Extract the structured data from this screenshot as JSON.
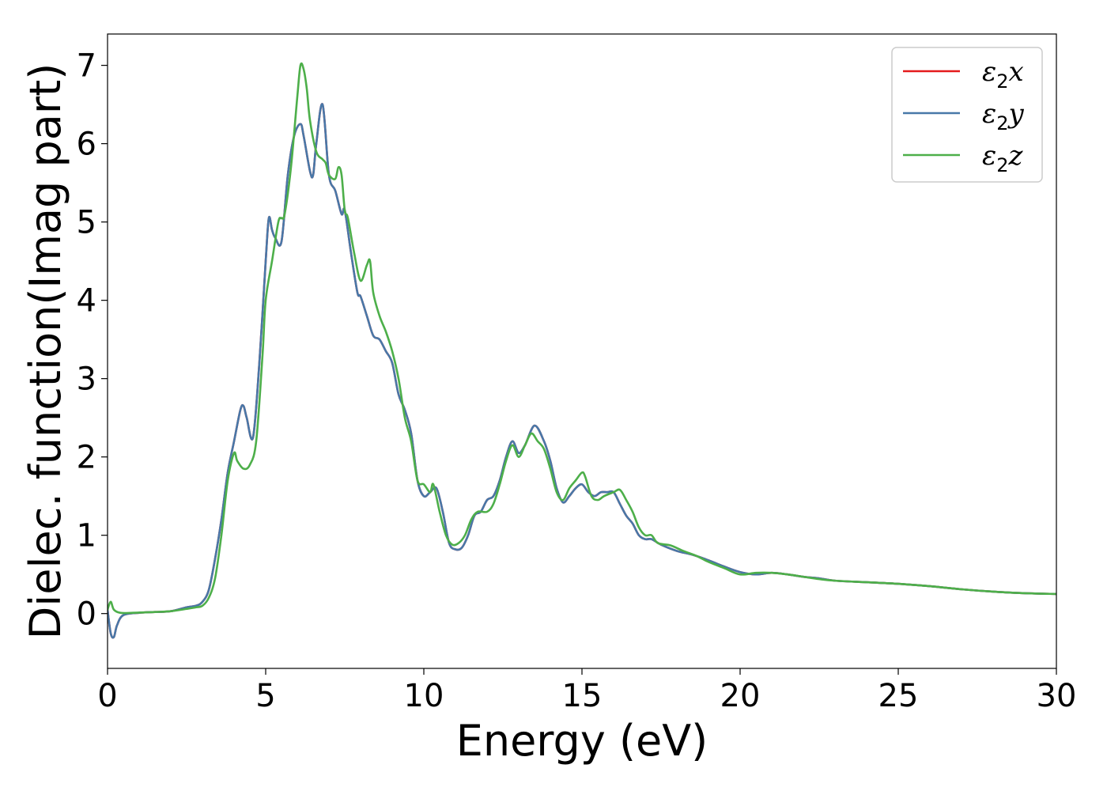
{
  "chart_data": {
    "type": "line",
    "title": "",
    "xlabel": "Energy (eV)",
    "ylabel": "Dielec. function(Imag part)",
    "xlim": [
      0,
      30
    ],
    "ylim": [
      -0.7,
      7.4
    ],
    "xticks": [
      0,
      5,
      10,
      15,
      20,
      25,
      30
    ],
    "yticks": [
      0,
      1,
      2,
      3,
      4,
      5,
      6,
      7
    ],
    "grid": false,
    "legend_position": "top-right",
    "series": [
      {
        "name": "ε2x",
        "legend_base": "ε",
        "legend_sub": "2",
        "legend_tail": "x",
        "color": "#e41a1c",
        "x": [
          0,
          0.1,
          0.2,
          0.3,
          0.5,
          1.0,
          1.5,
          2.0,
          2.5,
          2.8,
          3.0,
          3.2,
          3.4,
          3.6,
          3.8,
          4.0,
          4.2,
          4.3,
          4.4,
          4.6,
          4.8,
          5.0,
          5.1,
          5.2,
          5.3,
          5.5,
          5.7,
          5.9,
          6.1,
          6.2,
          6.4,
          6.5,
          6.6,
          6.8,
          7.0,
          7.2,
          7.4,
          7.5,
          7.7,
          7.9,
          8.0,
          8.2,
          8.4,
          8.6,
          8.8,
          9.0,
          9.2,
          9.4,
          9.6,
          9.8,
          10.0,
          10.2,
          10.4,
          10.6,
          10.8,
          11.0,
          11.2,
          11.4,
          11.6,
          11.8,
          12.0,
          12.2,
          12.4,
          12.6,
          12.8,
          13.0,
          13.2,
          13.5,
          13.8,
          14.0,
          14.2,
          14.4,
          14.6,
          14.8,
          15.0,
          15.2,
          15.4,
          15.6,
          15.8,
          16.0,
          16.2,
          16.4,
          16.6,
          16.8,
          17.0,
          17.2,
          17.5,
          18.0,
          18.5,
          19.0,
          19.5,
          20.0,
          20.5,
          21.0,
          21.5,
          22.0,
          22.5,
          23.0,
          24.0,
          25.0,
          26.0,
          27.0,
          28.0,
          29.0,
          30.0
        ],
        "y": [
          0.05,
          -0.25,
          -0.3,
          -0.15,
          -0.02,
          0.01,
          0.02,
          0.03,
          0.08,
          0.1,
          0.15,
          0.3,
          0.7,
          1.2,
          1.8,
          2.2,
          2.6,
          2.65,
          2.5,
          2.25,
          3.2,
          4.5,
          5.05,
          4.9,
          4.8,
          4.75,
          5.6,
          6.1,
          6.25,
          6.1,
          5.65,
          5.6,
          6.0,
          6.5,
          5.6,
          5.4,
          5.1,
          5.15,
          4.6,
          4.1,
          4.05,
          3.8,
          3.55,
          3.5,
          3.35,
          3.2,
          2.8,
          2.6,
          2.3,
          1.7,
          1.5,
          1.55,
          1.6,
          1.3,
          0.9,
          0.82,
          0.84,
          1.0,
          1.25,
          1.3,
          1.45,
          1.5,
          1.7,
          2.0,
          2.2,
          2.05,
          2.15,
          2.4,
          2.2,
          1.95,
          1.6,
          1.42,
          1.5,
          1.6,
          1.65,
          1.55,
          1.5,
          1.55,
          1.55,
          1.55,
          1.4,
          1.25,
          1.15,
          1.0,
          0.95,
          0.95,
          0.88,
          0.8,
          0.75,
          0.68,
          0.6,
          0.53,
          0.5,
          0.52,
          0.5,
          0.47,
          0.45,
          0.42,
          0.4,
          0.38,
          0.35,
          0.31,
          0.28,
          0.26,
          0.25
        ]
      },
      {
        "name": "ε2y",
        "legend_base": "ε",
        "legend_sub": "2",
        "legend_tail": "y",
        "color": "#4878a8",
        "x": [
          0,
          0.1,
          0.2,
          0.3,
          0.5,
          1.0,
          1.5,
          2.0,
          2.5,
          2.8,
          3.0,
          3.2,
          3.4,
          3.6,
          3.8,
          4.0,
          4.2,
          4.3,
          4.4,
          4.6,
          4.8,
          5.0,
          5.1,
          5.2,
          5.3,
          5.5,
          5.7,
          5.9,
          6.1,
          6.2,
          6.4,
          6.5,
          6.6,
          6.8,
          7.0,
          7.2,
          7.4,
          7.5,
          7.7,
          7.9,
          8.0,
          8.2,
          8.4,
          8.6,
          8.8,
          9.0,
          9.2,
          9.4,
          9.6,
          9.8,
          10.0,
          10.2,
          10.4,
          10.6,
          10.8,
          11.0,
          11.2,
          11.4,
          11.6,
          11.8,
          12.0,
          12.2,
          12.4,
          12.6,
          12.8,
          13.0,
          13.2,
          13.5,
          13.8,
          14.0,
          14.2,
          14.4,
          14.6,
          14.8,
          15.0,
          15.2,
          15.4,
          15.6,
          15.8,
          16.0,
          16.2,
          16.4,
          16.6,
          16.8,
          17.0,
          17.2,
          17.5,
          18.0,
          18.5,
          19.0,
          19.5,
          20.0,
          20.5,
          21.0,
          21.5,
          22.0,
          22.5,
          23.0,
          24.0,
          25.0,
          26.0,
          27.0,
          28.0,
          29.0,
          30.0
        ],
        "y": [
          0.05,
          -0.25,
          -0.3,
          -0.15,
          -0.02,
          0.01,
          0.02,
          0.03,
          0.08,
          0.1,
          0.15,
          0.3,
          0.7,
          1.2,
          1.8,
          2.2,
          2.6,
          2.65,
          2.5,
          2.25,
          3.2,
          4.5,
          5.05,
          4.9,
          4.8,
          4.75,
          5.6,
          6.1,
          6.25,
          6.1,
          5.65,
          5.6,
          6.0,
          6.5,
          5.6,
          5.4,
          5.1,
          5.15,
          4.6,
          4.1,
          4.05,
          3.8,
          3.55,
          3.5,
          3.35,
          3.2,
          2.8,
          2.6,
          2.3,
          1.7,
          1.5,
          1.55,
          1.6,
          1.3,
          0.9,
          0.82,
          0.84,
          1.0,
          1.25,
          1.3,
          1.45,
          1.5,
          1.7,
          2.0,
          2.2,
          2.05,
          2.15,
          2.4,
          2.2,
          1.95,
          1.6,
          1.42,
          1.5,
          1.6,
          1.65,
          1.55,
          1.5,
          1.55,
          1.55,
          1.55,
          1.4,
          1.25,
          1.15,
          1.0,
          0.95,
          0.95,
          0.88,
          0.8,
          0.75,
          0.68,
          0.6,
          0.53,
          0.5,
          0.52,
          0.5,
          0.47,
          0.45,
          0.42,
          0.4,
          0.38,
          0.35,
          0.31,
          0.28,
          0.26,
          0.25
        ]
      },
      {
        "name": "ε2z",
        "legend_base": "ε",
        "legend_sub": "2",
        "legend_tail": "z",
        "color": "#4daf4a",
        "x": [
          0,
          0.1,
          0.2,
          0.4,
          0.8,
          1.5,
          2.0,
          2.5,
          2.8,
          3.0,
          3.2,
          3.4,
          3.6,
          3.8,
          4.0,
          4.1,
          4.3,
          4.5,
          4.7,
          4.9,
          5.0,
          5.2,
          5.4,
          5.5,
          5.6,
          5.8,
          6.0,
          6.1,
          6.2,
          6.3,
          6.4,
          6.6,
          6.8,
          6.9,
          7.0,
          7.2,
          7.3,
          7.4,
          7.5,
          7.6,
          7.8,
          8.0,
          8.2,
          8.3,
          8.4,
          8.6,
          8.8,
          9.0,
          9.2,
          9.4,
          9.6,
          9.8,
          10.0,
          10.2,
          10.3,
          10.5,
          10.7,
          10.9,
          11.1,
          11.3,
          11.5,
          11.7,
          12.0,
          12.2,
          12.4,
          12.6,
          12.8,
          13.0,
          13.2,
          13.4,
          13.6,
          13.8,
          14.0,
          14.2,
          14.4,
          14.6,
          14.8,
          15.0,
          15.1,
          15.3,
          15.5,
          15.7,
          16.0,
          16.2,
          16.4,
          16.6,
          16.8,
          17.0,
          17.2,
          17.4,
          17.8,
          18.2,
          18.6,
          19.0,
          19.5,
          20.0,
          20.5,
          21.0,
          21.5,
          22.0,
          22.5,
          23.0,
          24.0,
          25.0,
          26.0,
          27.0,
          28.0,
          29.0,
          30.0
        ],
        "y": [
          0.05,
          0.15,
          0.05,
          0.01,
          0.01,
          0.02,
          0.03,
          0.06,
          0.08,
          0.1,
          0.2,
          0.45,
          1.0,
          1.7,
          2.05,
          1.95,
          1.85,
          1.9,
          2.2,
          3.3,
          4.0,
          4.5,
          5.0,
          5.05,
          5.1,
          5.7,
          6.6,
          7.0,
          6.95,
          6.7,
          6.3,
          5.9,
          5.8,
          5.75,
          5.6,
          5.55,
          5.7,
          5.6,
          5.15,
          5.05,
          4.6,
          4.25,
          4.45,
          4.5,
          4.1,
          3.8,
          3.6,
          3.35,
          3.0,
          2.5,
          2.2,
          1.7,
          1.65,
          1.55,
          1.65,
          1.3,
          1.0,
          0.88,
          0.9,
          1.0,
          1.2,
          1.3,
          1.3,
          1.4,
          1.65,
          1.95,
          2.15,
          2.0,
          2.15,
          2.3,
          2.2,
          2.1,
          1.85,
          1.55,
          1.45,
          1.6,
          1.7,
          1.8,
          1.75,
          1.5,
          1.45,
          1.5,
          1.55,
          1.58,
          1.45,
          1.3,
          1.1,
          1.0,
          1.0,
          0.9,
          0.87,
          0.8,
          0.74,
          0.66,
          0.58,
          0.5,
          0.52,
          0.52,
          0.5,
          0.47,
          0.44,
          0.42,
          0.4,
          0.38,
          0.35,
          0.31,
          0.28,
          0.26,
          0.25
        ]
      }
    ]
  }
}
